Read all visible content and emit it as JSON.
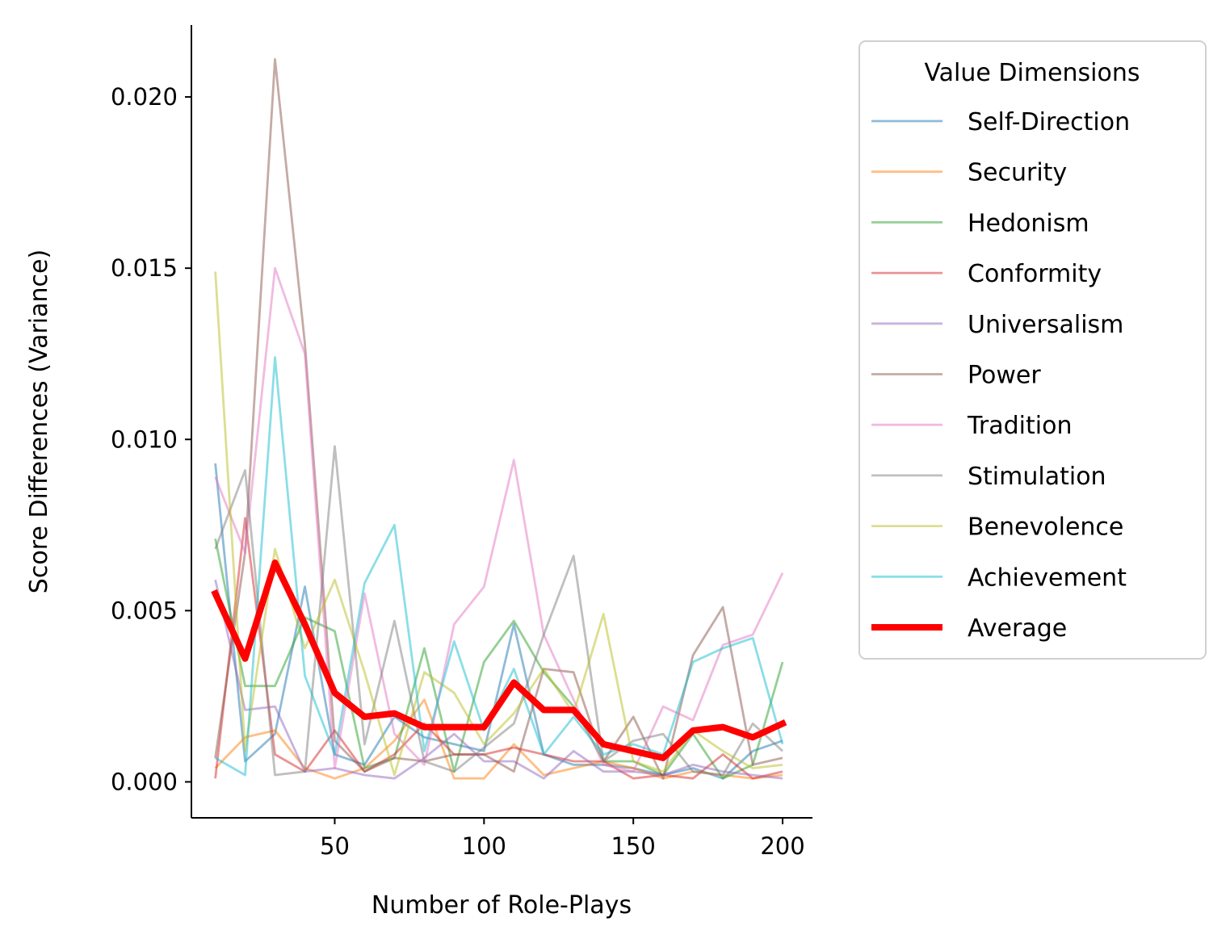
{
  "chart_data": {
    "type": "line",
    "xlabel": "Number of Role-Plays",
    "ylabel": "Score Differences (Variance)",
    "xlim": [
      2,
      210
    ],
    "ylim": [
      -0.00105,
      0.0221
    ],
    "x_ticks": [
      50,
      100,
      150,
      200
    ],
    "x_tick_labels": [
      "50",
      "100",
      "150",
      "200"
    ],
    "y_ticks": [
      0.0,
      0.005,
      0.01,
      0.015,
      0.02
    ],
    "y_tick_labels": [
      "0.000",
      "0.005",
      "0.010",
      "0.015",
      "0.020"
    ],
    "grid": false,
    "legend": {
      "title": "Value Dimensions",
      "placement": "outside-right"
    },
    "x": [
      10,
      20,
      30,
      40,
      50,
      60,
      70,
      80,
      90,
      100,
      110,
      120,
      130,
      140,
      150,
      160,
      170,
      180,
      190,
      200
    ],
    "series": [
      {
        "name": "Self-Direction",
        "color": "#1f77b4",
        "values": [
          0.0093,
          0.0006,
          0.0014,
          0.0057,
          0.0008,
          0.0005,
          0.0019,
          0.0013,
          0.0011,
          0.0009,
          0.0046,
          0.0008,
          0.0005,
          0.0005,
          0.0004,
          0.0002,
          0.0004,
          0.0001,
          0.0009,
          0.0012
        ]
      },
      {
        "name": "Security",
        "color": "#ff7f0e",
        "values": [
          0.0004,
          0.0013,
          0.0015,
          0.0004,
          0.0001,
          0.0004,
          0.0012,
          0.0024,
          0.0001,
          0.0001,
          0.0011,
          0.0002,
          0.0004,
          0.0006,
          0.0004,
          0.0001,
          0.0003,
          0.0002,
          0.0001,
          0.0002
        ]
      },
      {
        "name": "Hedonism",
        "color": "#2ca02c",
        "values": [
          0.0071,
          0.0028,
          0.0028,
          0.0048,
          0.0044,
          0.0004,
          0.0007,
          0.0039,
          0.0003,
          0.0035,
          0.0047,
          0.0032,
          0.0022,
          0.0006,
          0.0006,
          0.0002,
          0.0014,
          0.0001,
          0.0005,
          0.0035
        ]
      },
      {
        "name": "Conformity",
        "color": "#d62728",
        "values": [
          0.0001,
          0.0077,
          0.0008,
          0.0003,
          0.0015,
          0.0003,
          0.0008,
          0.0017,
          0.0008,
          0.0008,
          0.001,
          0.0008,
          0.0006,
          0.0006,
          0.0001,
          0.0002,
          0.0001,
          0.0008,
          0.0001,
          0.0003
        ]
      },
      {
        "name": "Universalism",
        "color": "#9467bd",
        "values": [
          0.0059,
          0.0021,
          0.0022,
          0.0003,
          0.0004,
          0.0002,
          0.0001,
          0.0007,
          0.0014,
          0.0006,
          0.0006,
          0.0001,
          0.0009,
          0.0003,
          0.0003,
          0.0002,
          0.0005,
          0.0003,
          0.0002,
          0.0001
        ]
      },
      {
        "name": "Power",
        "color": "#8c564b",
        "values": [
          0.0007,
          0.0067,
          0.0211,
          0.0128,
          0.0012,
          0.0003,
          0.0007,
          0.0006,
          0.0008,
          0.0008,
          0.0003,
          0.0033,
          0.0032,
          0.0006,
          0.0019,
          0.0001,
          0.0037,
          0.0051,
          0.0005,
          0.0007
        ]
      },
      {
        "name": "Tradition",
        "color": "#e377c2",
        "values": [
          0.0089,
          0.0067,
          0.015,
          0.0125,
          0.0004,
          0.0055,
          0.0014,
          0.0005,
          0.0046,
          0.0057,
          0.0094,
          0.0043,
          0.0024,
          0.0005,
          0.0003,
          0.0022,
          0.0018,
          0.004,
          0.0043,
          0.0061
        ]
      },
      {
        "name": "Stimulation",
        "color": "#7f7f7f",
        "values": [
          0.0068,
          0.0091,
          0.0002,
          0.0003,
          0.0098,
          0.0011,
          0.0047,
          0.0006,
          0.0003,
          0.001,
          0.0017,
          0.0043,
          0.0066,
          0.0006,
          0.0012,
          0.0014,
          0.0003,
          0.0002,
          0.0017,
          0.0009
        ]
      },
      {
        "name": "Benevolence",
        "color": "#bcbd22",
        "values": [
          0.0149,
          0.0009,
          0.0068,
          0.0039,
          0.0059,
          0.0032,
          0.0002,
          0.0032,
          0.0026,
          0.0011,
          0.002,
          0.0033,
          0.002,
          0.0049,
          0.0006,
          0.0003,
          0.0015,
          0.0009,
          0.0004,
          0.0005
        ]
      },
      {
        "name": "Achievement",
        "color": "#17becf",
        "values": [
          0.0007,
          0.0002,
          0.0124,
          0.0031,
          0.0008,
          0.0058,
          0.0075,
          0.0009,
          0.0041,
          0.0015,
          0.0033,
          0.0008,
          0.0019,
          0.0008,
          0.0011,
          0.0008,
          0.0035,
          0.0039,
          0.0042,
          0.0011
        ]
      },
      {
        "name": "Average",
        "color": "#ff0000",
        "values": [
          0.0055,
          0.0036,
          0.0064,
          0.0046,
          0.0026,
          0.0019,
          0.002,
          0.0016,
          0.0016,
          0.0016,
          0.0029,
          0.0021,
          0.0021,
          0.0011,
          0.0009,
          0.0007,
          0.0015,
          0.0016,
          0.0013,
          0.0017
        ]
      }
    ]
  }
}
